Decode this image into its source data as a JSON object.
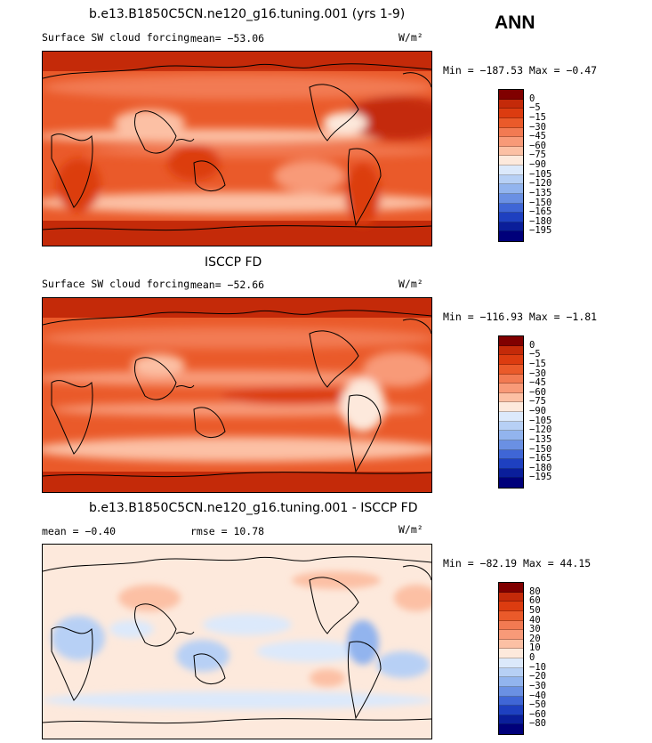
{
  "title": "ANN",
  "units": "W/m²",
  "chart_data": [
    {
      "type": "heatmap",
      "title": "b.e13.B1850C5CN.ne120_g16.tuning.001 (yrs 1-9)",
      "subtitle": "Surface SW cloud forcing",
      "stats": {
        "mean": "mean= −53.06",
        "minmax": "Min = −187.53 Max =  −0.47"
      },
      "levels": [
        "0",
        "−5",
        "−15",
        "−30",
        "−45",
        "−60",
        "−75",
        "−90",
        "−105",
        "−120",
        "−135",
        "−150",
        "−165",
        "−180",
        "−195"
      ],
      "colors": [
        "#800000",
        "#c42a09",
        "#dc3c10",
        "#ea5a2a",
        "#f27a52",
        "#f89a78",
        "#fcc0a4",
        "#fde9dc",
        "#dce9fb",
        "#b7d0f5",
        "#92b4ee",
        "#6a90e3",
        "#3f66d6",
        "#1e40c0",
        "#0a1e9a",
        "#00007a"
      ]
    },
    {
      "type": "heatmap",
      "title": "ISCCP FD",
      "subtitle": "Surface SW cloud forcing",
      "stats": {
        "mean": "mean= −52.66",
        "minmax": "Min = −116.93 Max =  −1.81"
      },
      "levels": [
        "0",
        "−5",
        "−15",
        "−30",
        "−45",
        "−60",
        "−75",
        "−90",
        "−105",
        "−120",
        "−135",
        "−150",
        "−165",
        "−180",
        "−195"
      ],
      "colors": [
        "#800000",
        "#c42a09",
        "#dc3c10",
        "#ea5a2a",
        "#f27a52",
        "#f89a78",
        "#fcc0a4",
        "#fde9dc",
        "#dce9fb",
        "#b7d0f5",
        "#92b4ee",
        "#6a90e3",
        "#3f66d6",
        "#1e40c0",
        "#0a1e9a",
        "#00007a"
      ]
    },
    {
      "type": "heatmap",
      "title": "b.e13.B1850C5CN.ne120_g16.tuning.001 - ISCCP FD",
      "stats": {
        "mean": "mean =  −0.40",
        "rmse": "rmse =  10.78",
        "minmax": "Min = −82.19 Max =  44.15"
      },
      "levels": [
        "80",
        "60",
        "50",
        "40",
        "30",
        "20",
        "10",
        "0",
        "−10",
        "−20",
        "−30",
        "−40",
        "−50",
        "−60",
        "−80"
      ],
      "colors": [
        "#800000",
        "#c42a09",
        "#dc3c10",
        "#ea5a2a",
        "#f27a52",
        "#f89a78",
        "#fcc0a4",
        "#fde9dc",
        "#dce9fb",
        "#b7d0f5",
        "#92b4ee",
        "#6a90e3",
        "#3f66d6",
        "#1e40c0",
        "#0a1e9a",
        "#00007a"
      ]
    }
  ]
}
